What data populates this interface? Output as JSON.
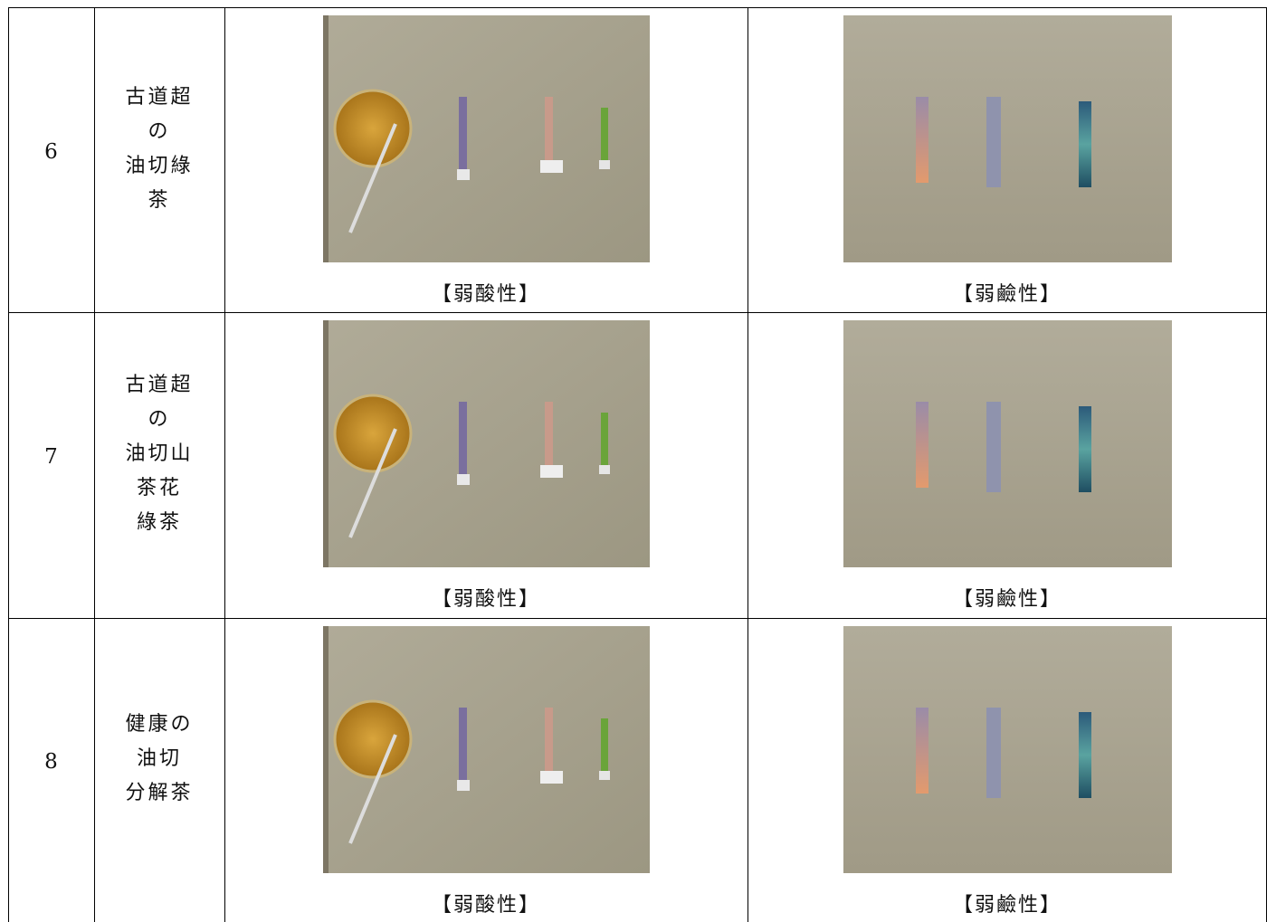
{
  "table": {
    "rows": [
      {
        "number": "6",
        "name_lines": [
          "古道超",
          "の",
          "油切綠",
          "茶"
        ],
        "acid_caption": "【弱酸性】",
        "base_caption": "【弱鹼性】"
      },
      {
        "number": "7",
        "name_lines": [
          "古道超",
          "の",
          "油切山",
          "茶花",
          "綠茶"
        ],
        "acid_caption": "【弱酸性】",
        "base_caption": "【弱鹼性】"
      },
      {
        "number": "8",
        "name_lines": [
          "健康の",
          "油切",
          "分解茶"
        ],
        "acid_caption": "【弱酸性】",
        "base_caption": "【弱鹼性】"
      }
    ]
  }
}
